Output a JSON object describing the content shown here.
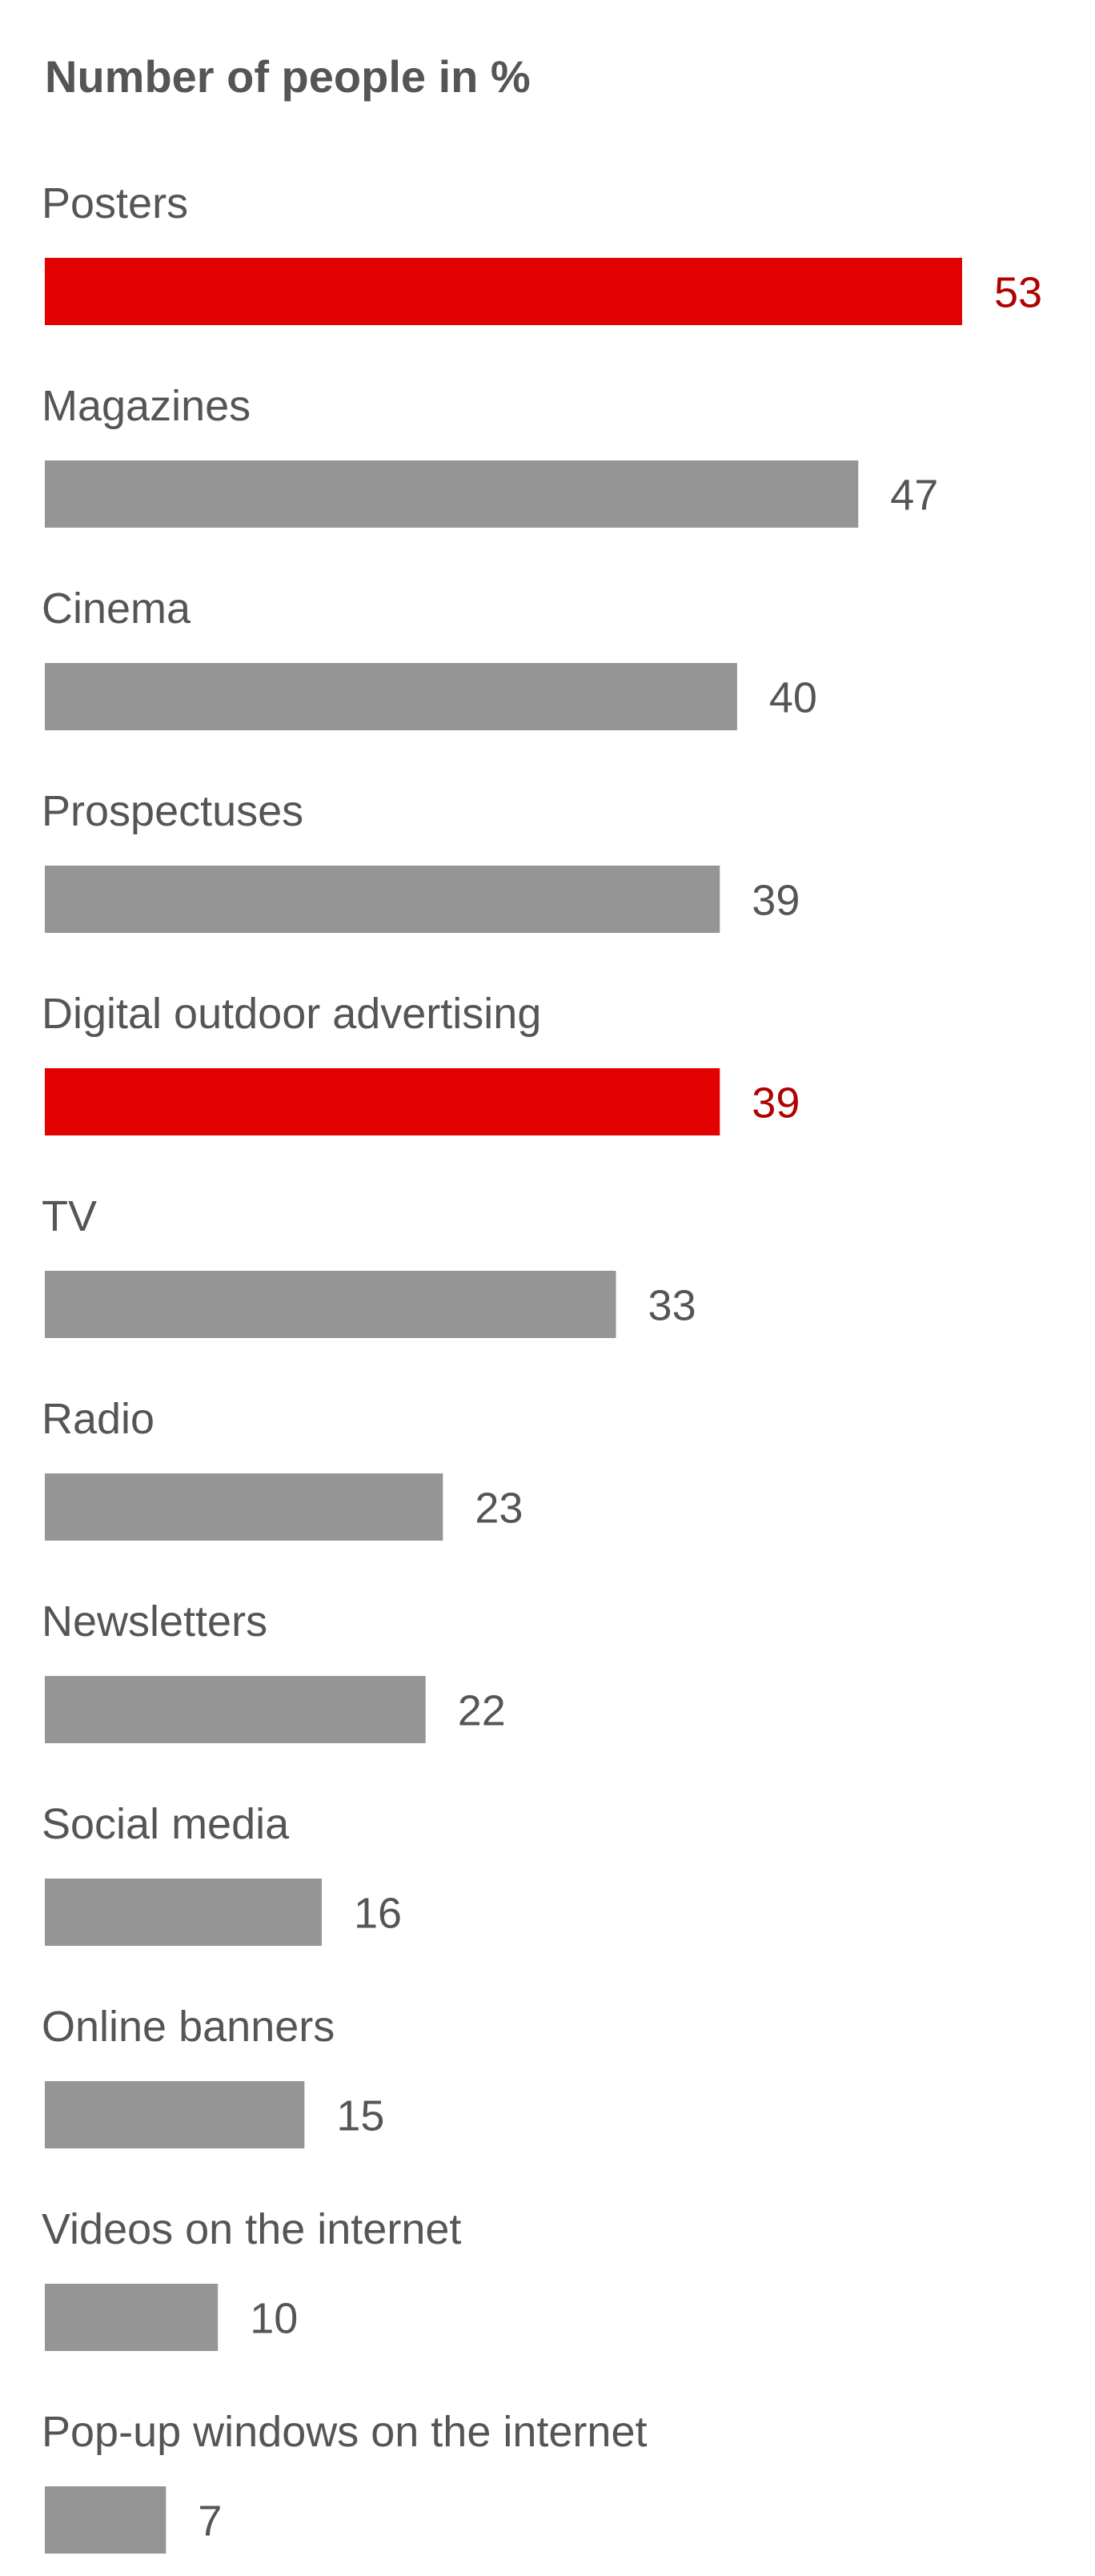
{
  "chart_data": {
    "type": "bar",
    "orientation": "horizontal",
    "title": "Number of people in %",
    "xlabel": "",
    "ylabel": "",
    "grid": false,
    "legend": "none",
    "xlim": [
      0,
      53
    ],
    "categories": [
      "Posters",
      "Magazines",
      "Cinema",
      "Prospectuses",
      "Digital outdoor advertising",
      "TV",
      "Radio",
      "Newsletters",
      "Social media",
      "Online banners",
      "Videos on the internet",
      "Pop-up windows on the internet"
    ],
    "values": [
      53,
      47,
      40,
      39,
      39,
      33,
      23,
      22,
      16,
      15,
      10,
      7
    ],
    "highlighted": [
      0,
      4
    ],
    "colors": {
      "bar_default": "#959595",
      "bar_highlight": "#e30000",
      "label_default": "#555555",
      "label_highlight": "#b00000",
      "title": "#555555",
      "category": "#555555"
    }
  }
}
